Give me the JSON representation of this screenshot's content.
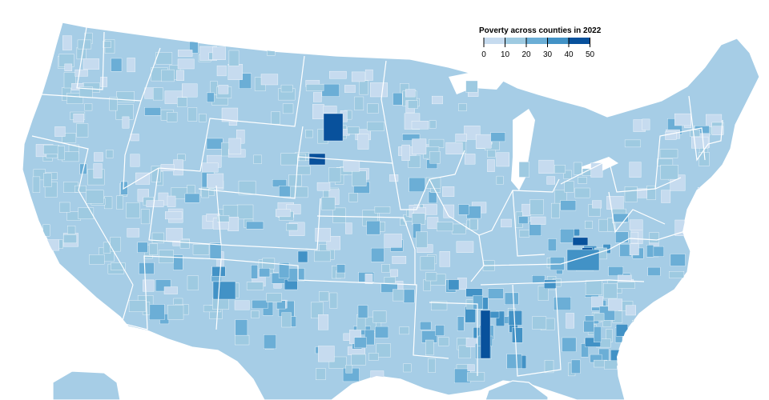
{
  "legend": {
    "title": "Poverty across counties in 2022",
    "ticks": [
      "0",
      "10",
      "20",
      "30",
      "40",
      "50"
    ],
    "colors": [
      "#c6dbef",
      "#9ecae1",
      "#6baed6",
      "#4292c6",
      "#08519c"
    ]
  },
  "map": {
    "region": "United States counties",
    "base_color": "#a6cde6",
    "border_color": "#ffffff"
  }
}
